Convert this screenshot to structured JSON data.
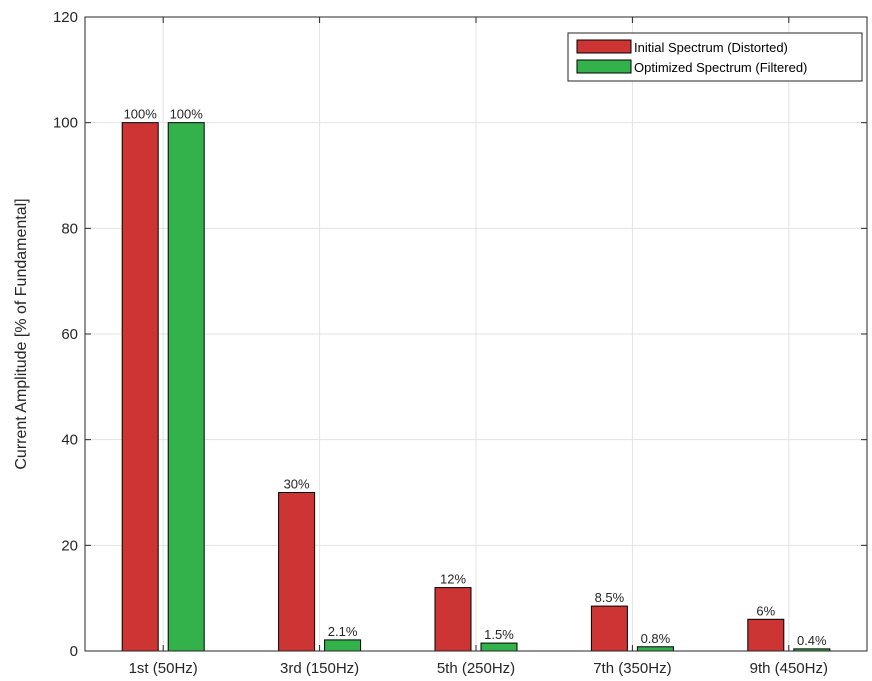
{
  "chart_data": {
    "type": "bar",
    "title": "",
    "xlabel": "",
    "ylabel": "Current Amplitude [% of Fundamental]",
    "ylim": [
      0,
      120
    ],
    "yticks": [
      0,
      20,
      40,
      60,
      80,
      100,
      120
    ],
    "grid": true,
    "legend_position": "top-right",
    "categories": [
      "1st (50Hz)",
      "3rd (150Hz)",
      "5th (250Hz)",
      "7th (350Hz)",
      "9th (450Hz)"
    ],
    "series": [
      {
        "name": "Initial Spectrum (Distorted)",
        "color": "#cd3434",
        "values": [
          100,
          30,
          12,
          8.5,
          6
        ],
        "labels": [
          "100%",
          "30%",
          "12%",
          "8.5%",
          "6%"
        ]
      },
      {
        "name": "Optimized Spectrum (Filtered)",
        "color": "#33b24c",
        "values": [
          100,
          2.1,
          1.5,
          0.8,
          0.4
        ],
        "labels": [
          "100%",
          "2.1%",
          "1.5%",
          "0.8%",
          "0.4%"
        ]
      }
    ]
  }
}
